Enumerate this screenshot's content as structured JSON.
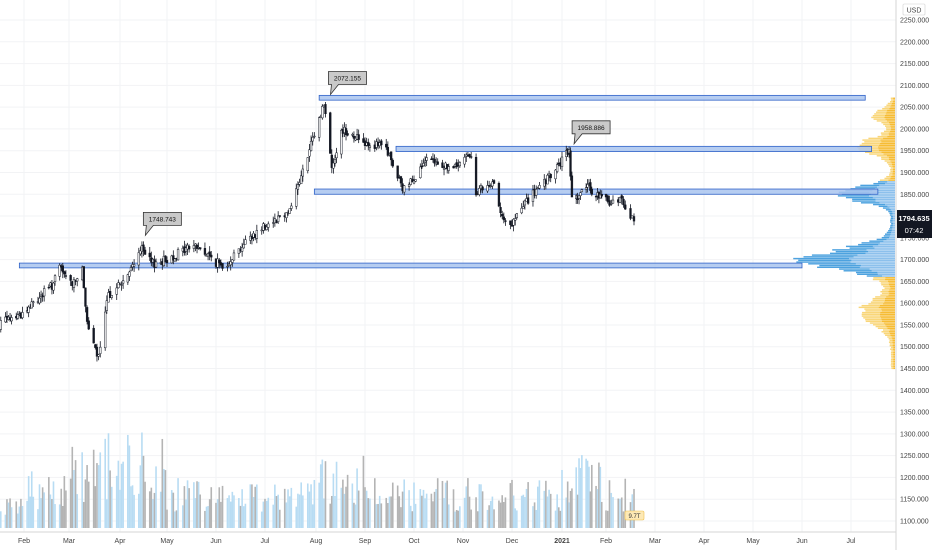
{
  "colors": {
    "background": "#ffffff",
    "grid": "#f2f3f5",
    "candle": "#131722",
    "volume_up": "#b8dcf3",
    "volume_down": "#b4b4b4",
    "zone_fill": "#a9c4ee",
    "zone_stroke": "#2f62c8",
    "vp_value_area": "#3a98dc",
    "vp_outside": "#f5b51e",
    "callout_fill": "#c9c9c9",
    "price_tag_bg": "#131722",
    "price_tag_fg": "#ffffff",
    "axis_text": "#444444"
  },
  "currency_label": "USD",
  "last_price": {
    "price": "1794.635",
    "countdown": "07:42"
  },
  "volume_marker": "9.7T",
  "chart_data": {
    "type": "candlestick",
    "instrument_currency": "USD",
    "timeframe_note": "daily candles, Jan 2020 – Feb 2021",
    "ylim": [
      1080,
      2300
    ],
    "y_ticks": [
      "2250.000",
      "2200.000",
      "2150.000",
      "2100.000",
      "2050.000",
      "2000.000",
      "1950.000",
      "1900.000",
      "1850.000",
      "1800.000",
      "1750.000",
      "1700.000",
      "1650.000",
      "1600.000",
      "1550.000",
      "1500.000",
      "1450.000",
      "1400.000",
      "1350.000",
      "1300.000",
      "1250.000",
      "1200.000",
      "1150.000",
      "1100.000"
    ],
    "x_ticks": [
      "Feb",
      "Mar",
      "Apr",
      "May",
      "Jun",
      "Jul",
      "Aug",
      "Sep",
      "Oct",
      "Nov",
      "Dec",
      "2021",
      "Feb",
      "Mar",
      "Apr",
      "May",
      "Jun",
      "Jul"
    ],
    "x_tick_bold": "2021",
    "close_path": [
      [
        "2020-01-15",
        1552
      ],
      [
        "2020-02-01",
        1578
      ],
      [
        "2020-02-20",
        1645
      ],
      [
        "2020-02-24",
        1680
      ],
      [
        "2020-03-02",
        1645
      ],
      [
        "2020-03-09",
        1672
      ],
      [
        "2020-03-13",
        1530
      ],
      [
        "2020-03-19",
        1474
      ],
      [
        "2020-03-25",
        1620
      ],
      [
        "2020-04-06",
        1660
      ],
      [
        "2020-04-14",
        1727
      ],
      [
        "2020-04-21",
        1690
      ],
      [
        "2020-05-01",
        1700
      ],
      [
        "2020-05-18",
        1735
      ],
      [
        "2020-06-05",
        1683
      ],
      [
        "2020-06-19",
        1740
      ],
      [
        "2020-07-01",
        1780
      ],
      [
        "2020-07-15",
        1810
      ],
      [
        "2020-07-24",
        1900
      ],
      [
        "2020-08-06",
        2060
      ],
      [
        "2020-08-11",
        1915
      ],
      [
        "2020-08-18",
        2000
      ],
      [
        "2020-09-01",
        1970
      ],
      [
        "2020-09-14",
        1955
      ],
      [
        "2020-09-24",
        1860
      ],
      [
        "2020-10-09",
        1925
      ],
      [
        "2020-10-27",
        1910
      ],
      [
        "2020-11-06",
        1945
      ],
      [
        "2020-11-09",
        1855
      ],
      [
        "2020-11-20",
        1870
      ],
      [
        "2020-11-27",
        1780
      ],
      [
        "2020-11-30",
        1775
      ],
      [
        "2020-12-10",
        1835
      ],
      [
        "2020-12-22",
        1878
      ],
      [
        "2021-01-06",
        1950
      ],
      [
        "2021-01-08",
        1840
      ],
      [
        "2021-01-20",
        1865
      ],
      [
        "2021-01-27",
        1845
      ],
      [
        "2021-02-04",
        1830
      ],
      [
        "2021-02-10",
        1840
      ],
      [
        "2021-02-17",
        1785
      ]
    ],
    "callouts": [
      {
        "date": "2020-04-14",
        "price": 1748.743,
        "label": "1748.743"
      },
      {
        "date": "2020-08-07",
        "price": 2072.155,
        "label": "2072.155"
      },
      {
        "date": "2021-01-06",
        "price": 1958.886,
        "label": "1958.886"
      }
    ],
    "zones": [
      {
        "from": "2020-08-03",
        "to": "2021-07-10",
        "top": 2077,
        "bottom": 2066
      },
      {
        "from": "2020-09-20",
        "to": "2021-07-14",
        "top": 1960,
        "bottom": 1948
      },
      {
        "from": "2020-07-31",
        "to": "2021-07-18",
        "top": 1862,
        "bottom": 1850
      },
      {
        "from": "2020-01-29",
        "to": "2021-06-01",
        "top": 1692,
        "bottom": 1681
      }
    ],
    "volume_profile": "horizontal profile on the right, wide peak near 1700 and secondary peak near 1850",
    "volume": "histogram along the bottom, blue for up days and grey for down days",
    "grid": true
  }
}
